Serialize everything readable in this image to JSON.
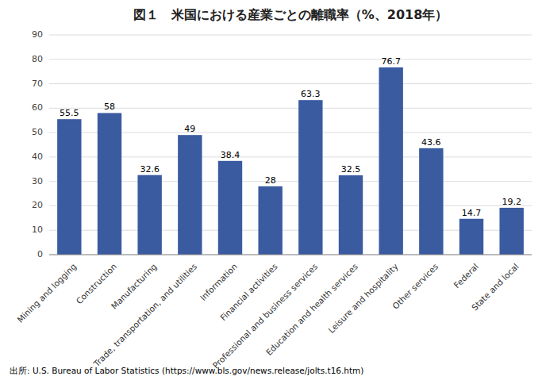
{
  "chart_data": {
    "type": "bar",
    "title": "図１　米国における産業ごとの離職率（%、2018年）",
    "categories": [
      "Mining and logging",
      "Construction",
      "Manufacturing",
      "Trade, transportation, and utilities",
      "Information",
      "Financial activities",
      "Professional and business services",
      "Education and health services",
      "Leisure and hospitality",
      "Other services",
      "Federal",
      "State and local"
    ],
    "values": [
      55.5,
      58.0,
      32.6,
      49.0,
      38.4,
      28.0,
      63.3,
      32.5,
      76.7,
      43.6,
      14.7,
      19.2
    ],
    "value_labels": [
      "55.5",
      "58",
      "32.6",
      "49",
      "38.4",
      "28",
      "63.3",
      "32.5",
      "76.7",
      "43.6",
      "14.7",
      "19.2"
    ],
    "color": "#3A5BA0",
    "ylim": [
      0,
      90
    ],
    "yticks": [
      0,
      10,
      20,
      30,
      40,
      50,
      60,
      70,
      80,
      90
    ],
    "grid": true,
    "data_labels": true,
    "annotations": [
      "出所: U.S. Bureau of Labor Statistics (https://www.bls.gov/news.release/jolts.t16.htm)"
    ]
  }
}
